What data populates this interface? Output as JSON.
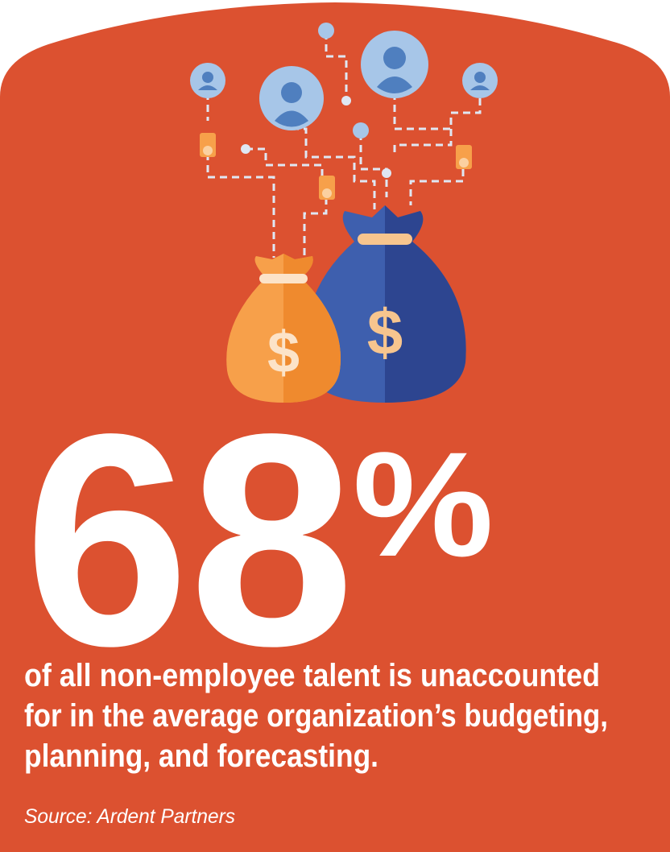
{
  "stat": {
    "value": 68,
    "unit": "%"
  },
  "description": [
    "of all non-employee talent is unaccounted",
    "for in the average organization’s budgeting,",
    "planning, and forecasting."
  ],
  "source": "Source: Ardent Partners"
}
